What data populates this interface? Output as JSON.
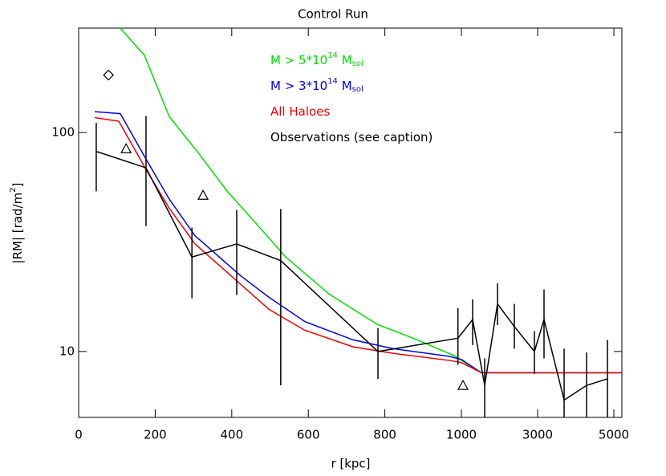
{
  "chart_data": {
    "type": "line",
    "title": "Control Run",
    "x_label": "r [kpc]",
    "y_label": [
      "|RM| [rad/m",
      "2",
      "]"
    ],
    "xlim": [
      0,
      5210
    ],
    "x_scale_break": 1000,
    "xticks": [
      0,
      200,
      400,
      600,
      800,
      1000,
      3000,
      5000
    ],
    "ylim": [
      5,
      300
    ],
    "log_y": true,
    "yticks": [
      10,
      100
    ],
    "series": [
      {
        "name": [
          "M > 5*10",
          "14",
          " M",
          "sol"
        ],
        "color": "#00e000",
        "x": [
          105,
          172,
          237,
          312,
          388,
          478,
          541,
          654,
          780,
          885,
          985,
          1000,
          1526,
          5210
        ],
        "values": [
          305,
          225,
          118,
          81,
          54,
          36,
          27,
          18.3,
          13.3,
          11.3,
          9.5,
          9.1,
          8.0,
          8.0
        ]
      },
      {
        "name": [
          "M > 3*10",
          "14",
          " M",
          "sol"
        ],
        "color": "#0000ee",
        "x": [
          42,
          109,
          176,
          237,
          304,
          423,
          497,
          591,
          717,
          822,
          969,
          1000,
          1526,
          5210
        ],
        "values": [
          124.6,
          122,
          75.6,
          49.6,
          33.8,
          22.2,
          17.7,
          13.7,
          11.3,
          10.3,
          9.5,
          9.2,
          8.0,
          8.0
        ]
      },
      {
        "name": [
          "All Haloes"
        ],
        "color": "#ee0000",
        "x": [
          42,
          105,
          176,
          237,
          304,
          423,
          497,
          591,
          717,
          822,
          969,
          1000,
          1526,
          5210
        ],
        "values": [
          117,
          112.6,
          67.8,
          45,
          31,
          20.3,
          15.6,
          12.5,
          10.5,
          9.8,
          9.1,
          8.9,
          8.0,
          8.0
        ]
      },
      {
        "name": [
          "Observations (see caption)"
        ],
        "color": "#000000",
        "x": [
          46,
          176,
          296,
          413,
          528,
          782,
          991,
          1295,
          1611,
          1947,
          2389,
          2916,
          3168,
          3695,
          4284,
          4832
        ],
        "values": [
          82,
          69,
          27,
          31,
          26,
          10,
          11.5,
          14,
          7.0,
          16.5,
          13,
          10,
          14,
          6.0,
          7.0,
          7.5
        ],
        "lower": [
          53.9,
          37.4,
          17.5,
          18.1,
          7.0,
          7.5,
          8.7,
          10.7,
          5,
          13.2,
          10.3,
          7.9,
          9.3,
          5,
          5,
          5
        ],
        "upper": [
          110.7,
          119,
          36.8,
          44.3,
          44.8,
          12.8,
          15.8,
          17.3,
          9.3,
          20.5,
          16.5,
          12.4,
          19.2,
          10.3,
          9.9,
          11.3
        ]
      }
    ],
    "markers": [
      {
        "shape": "diamond",
        "x": [
          78
        ],
        "values": [
          183
        ]
      },
      {
        "shape": "triangle",
        "x": [
          124,
          325,
          1042
        ],
        "values": [
          84.4,
          51.7,
          7.0
        ]
      }
    ]
  }
}
